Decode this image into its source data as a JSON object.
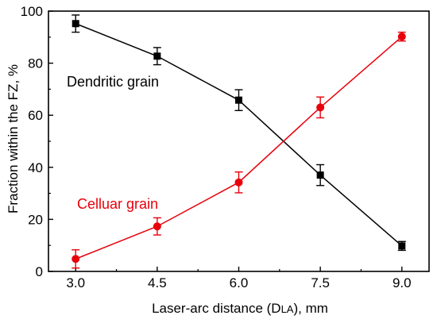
{
  "chart_data": {
    "type": "line",
    "xlabel_main": "Laser-arc distance (D",
    "xlabel_sub": "LA",
    "xlabel_tail": "), mm",
    "ylabel": "Fraction within the FZ, %",
    "x": [
      3.0,
      4.5,
      6.0,
      7.5,
      9.0
    ],
    "x_tick_labels": [
      "3.0",
      "4.5",
      "6.0",
      "7.5",
      "9.0"
    ],
    "y_ticks": [
      0,
      20,
      40,
      60,
      80,
      100
    ],
    "y_tick_labels": [
      "0",
      "20",
      "40",
      "60",
      "80",
      "100"
    ],
    "xlim": [
      2.5,
      9.5
    ],
    "ylim": [
      0,
      100
    ],
    "grid": false,
    "series": [
      {
        "name": "Dendritic grain",
        "color": "#000000",
        "marker": "square",
        "values": [
          95.2,
          82.7,
          65.8,
          37.0,
          9.8
        ],
        "errors": [
          3.3,
          3.3,
          4.0,
          4.0,
          1.7
        ]
      },
      {
        "name": "Celluar grain",
        "color": "#e8000b",
        "marker": "circle",
        "values": [
          4.8,
          17.3,
          34.2,
          63.0,
          90.2
        ],
        "errors": [
          3.5,
          3.3,
          4.0,
          4.0,
          1.7
        ]
      }
    ]
  }
}
